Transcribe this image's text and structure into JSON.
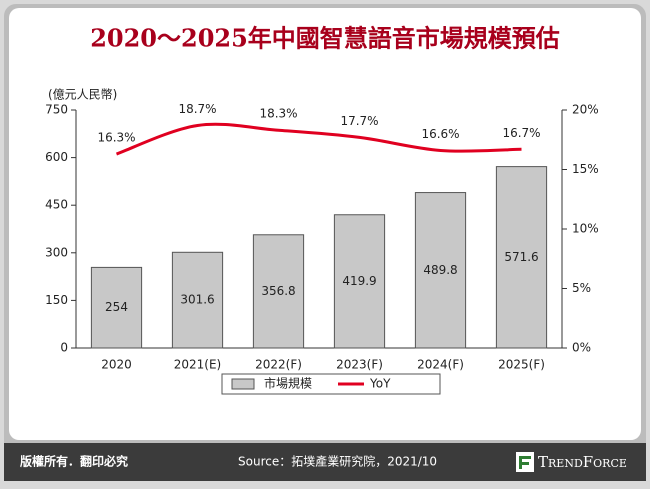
{
  "chart_data": {
    "type": "bar-line",
    "title": "2020～2025年中國智慧語音市場規模預估",
    "y_label": "(億元人民幣)",
    "categories": [
      "2020",
      "2021(E)",
      "2022(F)",
      "2023(F)",
      "2024(F)",
      "2025(F)"
    ],
    "series": [
      {
        "name": "市場規模",
        "type": "bar",
        "color": "#c8c8c8",
        "values": [
          254,
          301.6,
          356.8,
          419.9,
          489.8,
          571.6
        ]
      },
      {
        "name": "YoY",
        "type": "line",
        "axis": "y2",
        "color": "#e00020",
        "values": [
          16.3,
          18.7,
          18.3,
          17.7,
          16.6,
          16.7
        ],
        "value_labels": [
          "16.3%",
          "18.7%",
          "18.3%",
          "17.7%",
          "16.6%",
          "16.7%"
        ]
      }
    ],
    "ylim": [
      0,
      750
    ],
    "yticks": [
      0,
      150,
      300,
      450,
      600,
      750
    ],
    "y2lim": [
      0,
      20
    ],
    "y2ticks": [
      {
        "value": 0,
        "label": "0%"
      },
      {
        "value": 5,
        "label": "5%"
      },
      {
        "value": 10,
        "label": "10%"
      },
      {
        "value": 15,
        "label": "15%"
      },
      {
        "value": 20,
        "label": "20%"
      }
    ],
    "legend": "bottom"
  },
  "footer": {
    "copyright": "版權所有．翻印必究",
    "source": "Source：拓墣產業研究院，2021/10",
    "logo": "TrendForce"
  }
}
